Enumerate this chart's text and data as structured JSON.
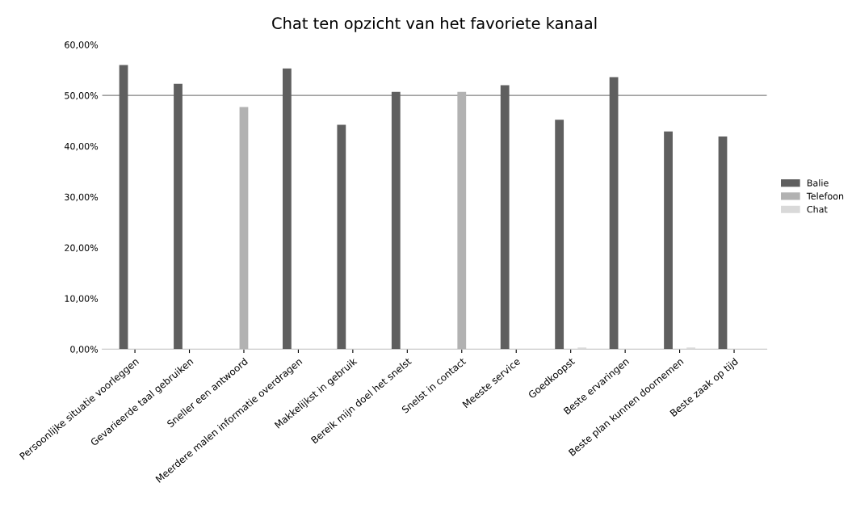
{
  "chart_data": {
    "type": "bar",
    "title": "Chat ten opzicht van het favoriete kanaal",
    "categories": [
      "Persoonlijke situatie voorleggen",
      "Gevarieerde taal gebruiken",
      "Sneller een antwoord",
      "Meerdere malen informatie overdragen",
      "Makkelijkst in gebruik",
      "Bereik mijn doel het snelst",
      "Snelst in contact",
      "Meeste service",
      "Goedkoopst",
      "Beste ervaringen",
      "Beste plan kunnen doornemen",
      "Beste zaak op tijd"
    ],
    "series": [
      {
        "name": "Balie",
        "color": "#5f5f5f",
        "values": [
          56.0,
          52.3,
          null,
          55.3,
          44.2,
          50.7,
          null,
          52.0,
          45.2,
          53.6,
          42.9,
          41.9
        ]
      },
      {
        "name": "Telefoon",
        "color": "#b2b2b2",
        "values": [
          null,
          null,
          47.7,
          null,
          null,
          null,
          50.7,
          null,
          null,
          null,
          null,
          null
        ]
      },
      {
        "name": "Chat",
        "color": "#d9d9d9",
        "values": [
          null,
          null,
          null,
          null,
          null,
          null,
          null,
          null,
          0.3,
          null,
          0.3,
          null
        ]
      }
    ],
    "ylim": [
      0,
      60
    ],
    "yticks": [
      {
        "value": 0,
        "label": "0,00%"
      },
      {
        "value": 10,
        "label": "10,00%"
      },
      {
        "value": 20,
        "label": "20,00%"
      },
      {
        "value": 30,
        "label": "30,00%"
      },
      {
        "value": 40,
        "label": "40,00%"
      },
      {
        "value": 50,
        "label": "50,00%"
      },
      {
        "value": 60,
        "label": "60,00%"
      }
    ],
    "ref_lines": [
      {
        "axis": "y",
        "value": 50,
        "label": null,
        "color": "#808080"
      }
    ],
    "legend": "right",
    "grid": false
  }
}
